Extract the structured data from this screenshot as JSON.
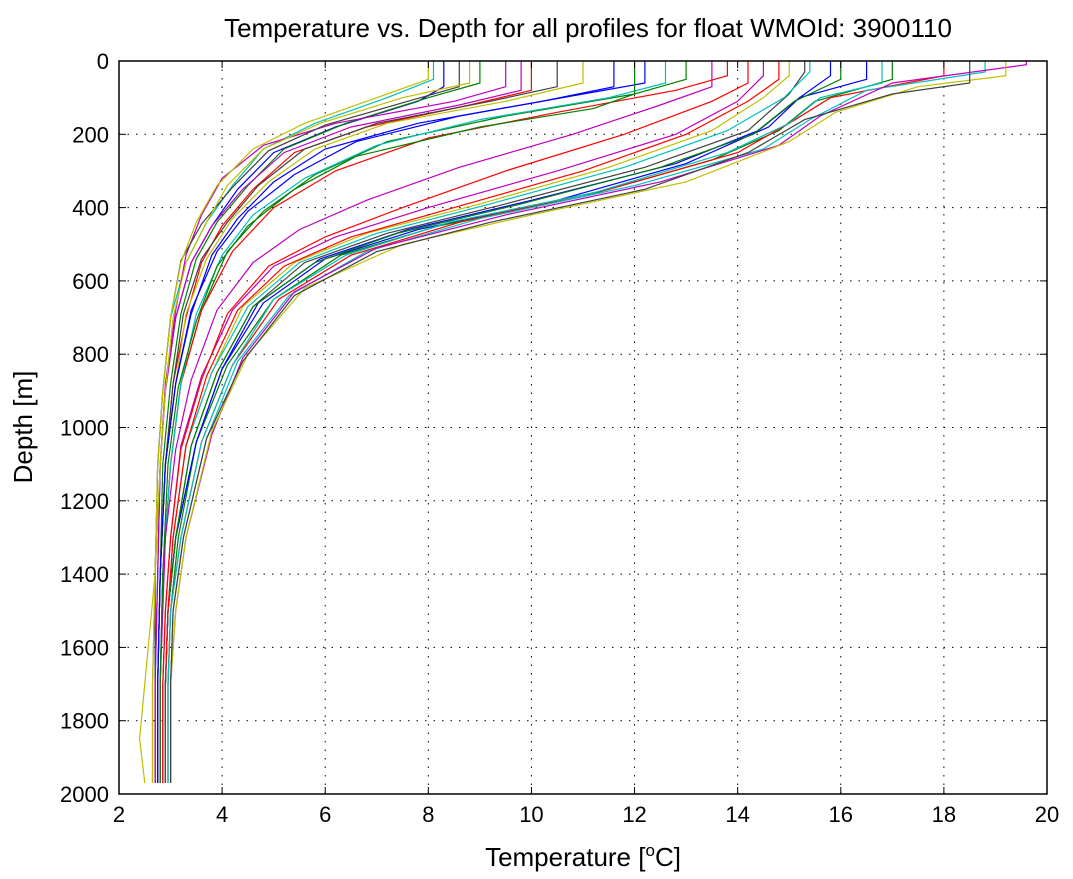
{
  "chart_data": {
    "type": "line",
    "title": "Temperature vs. Depth for all profiles for float WMOId: 3900110",
    "xlabel": "Temperature [",
    "xlabel_sup": "o",
    "xlabel_suffix": "C]",
    "ylabel": "Depth [m]",
    "xlim": [
      2,
      20
    ],
    "ylim": [
      0,
      2000
    ],
    "y_reversed": true,
    "grid": true,
    "x_ticks": [
      2,
      4,
      6,
      8,
      10,
      12,
      14,
      16,
      18,
      20
    ],
    "y_ticks": [
      0,
      200,
      400,
      600,
      800,
      1000,
      1200,
      1400,
      1600,
      1800,
      2000
    ],
    "x_tick_labels": [
      "2",
      "4",
      "6",
      "8",
      "10",
      "12",
      "14",
      "16",
      "18",
      "20"
    ],
    "y_tick_labels": [
      "0",
      "200",
      "400",
      "600",
      "800",
      "1000",
      "1200",
      "1400",
      "1600",
      "1800",
      "2000"
    ],
    "colors": [
      "#0000ff",
      "#008000",
      "#ff0000",
      "#00bfbf",
      "#bf00bf",
      "#bfbf00",
      "#404040"
    ],
    "series": [
      {
        "x": [
          8.3,
          8.3,
          7.8,
          6.2,
          5.0,
          4.3,
          3.8,
          3.4,
          3.1,
          2.9,
          2.8,
          2.75,
          2.7,
          2.7
        ],
        "y": [
          0,
          70,
          110,
          180,
          250,
          350,
          450,
          550,
          700,
          900,
          1100,
          1400,
          1700,
          1970
        ]
      },
      {
        "x": [
          9.0,
          9.0,
          8.0,
          6.4,
          5.2,
          4.5,
          3.9,
          3.5,
          3.2,
          3.0,
          2.85,
          2.8,
          2.75,
          2.75
        ],
        "y": [
          0,
          60,
          100,
          170,
          240,
          340,
          440,
          540,
          690,
          880,
          1100,
          1400,
          1700,
          1970
        ]
      },
      {
        "x": [
          10.0,
          10.0,
          8.8,
          6.8,
          5.4,
          4.6,
          4.0,
          3.6,
          3.3,
          3.05,
          2.9,
          2.8,
          2.75,
          2.75
        ],
        "y": [
          0,
          80,
          120,
          180,
          250,
          350,
          450,
          550,
          700,
          880,
          1100,
          1400,
          1700,
          1970
        ]
      },
      {
        "x": [
          8.1,
          8.1,
          7.2,
          5.8,
          4.8,
          4.2,
          3.7,
          3.3,
          3.0,
          2.85,
          2.75,
          2.7,
          2.65,
          2.65
        ],
        "y": [
          0,
          50,
          100,
          170,
          240,
          340,
          440,
          550,
          700,
          900,
          1100,
          1400,
          1700,
          1970
        ]
      },
      {
        "x": [
          9.5,
          9.5,
          8.5,
          6.2,
          4.8,
          4.0,
          3.6,
          3.3,
          3.1,
          2.9,
          2.8,
          2.7,
          2.7,
          2.7
        ],
        "y": [
          0,
          70,
          110,
          170,
          230,
          320,
          420,
          530,
          680,
          880,
          1100,
          1400,
          1700,
          1970
        ]
      },
      {
        "x": [
          11.0,
          11.0,
          9.5,
          7.2,
          5.8,
          4.9,
          4.2,
          3.7,
          3.3,
          3.1,
          2.9,
          2.8,
          2.75,
          2.75
        ],
        "y": [
          0,
          60,
          110,
          170,
          240,
          330,
          430,
          540,
          690,
          880,
          1100,
          1400,
          1700,
          1970
        ]
      },
      {
        "x": [
          8.6,
          8.6,
          7.6,
          6.0,
          4.9,
          4.2,
          3.6,
          3.2,
          3.0,
          2.85,
          2.75,
          2.7,
          2.7,
          2.7
        ],
        "y": [
          0,
          70,
          110,
          175,
          245,
          345,
          445,
          545,
          700,
          900,
          1100,
          1400,
          1700,
          1970
        ]
      },
      {
        "x": [
          12.2,
          12.2,
          11.0,
          8.6,
          6.6,
          5.4,
          4.5,
          3.9,
          3.4,
          3.1,
          2.9,
          2.8,
          2.75,
          2.75
        ],
        "y": [
          0,
          60,
          90,
          150,
          220,
          310,
          410,
          520,
          680,
          880,
          1100,
          1400,
          1700,
          1970
        ]
      },
      {
        "x": [
          13.0,
          13.0,
          12.0,
          9.5,
          7.2,
          5.8,
          4.8,
          4.1,
          3.6,
          3.2,
          3.0,
          2.85,
          2.8,
          2.8
        ],
        "y": [
          0,
          50,
          90,
          150,
          220,
          310,
          410,
          520,
          680,
          880,
          1100,
          1400,
          1700,
          1970
        ]
      },
      {
        "x": [
          13.8,
          13.8,
          12.8,
          10.5,
          8.0,
          6.2,
          5.0,
          4.2,
          3.6,
          3.2,
          3.0,
          2.85,
          2.8,
          2.8
        ],
        "y": [
          0,
          40,
          80,
          140,
          210,
          300,
          400,
          520,
          680,
          880,
          1100,
          1400,
          1700,
          1970
        ]
      },
      {
        "x": [
          12.6,
          12.6,
          11.5,
          9.0,
          7.0,
          5.6,
          4.6,
          4.0,
          3.5,
          3.2,
          3.0,
          2.85,
          2.8,
          2.8
        ],
        "y": [
          0,
          60,
          100,
          160,
          230,
          320,
          420,
          530,
          690,
          880,
          1100,
          1400,
          1700,
          1970
        ]
      },
      {
        "x": [
          14.5,
          14.5,
          14.0,
          12.8,
          10.5,
          8.0,
          6.2,
          5.0,
          4.2,
          3.6,
          3.2,
          3.0,
          2.9,
          2.85,
          2.85
        ],
        "y": [
          0,
          40,
          110,
          200,
          300,
          400,
          480,
          560,
          680,
          860,
          1050,
          1300,
          1500,
          1700,
          1970
        ]
      },
      {
        "x": [
          15.0,
          15.0,
          14.5,
          13.5,
          11.5,
          9.0,
          6.8,
          5.4,
          4.4,
          3.8,
          3.3,
          3.05,
          2.95,
          2.9,
          2.9
        ],
        "y": [
          0,
          40,
          100,
          190,
          290,
          390,
          470,
          550,
          670,
          850,
          1050,
          1300,
          1500,
          1700,
          1970
        ]
      },
      {
        "x": [
          15.3,
          15.3,
          15.0,
          14.2,
          12.2,
          9.5,
          7.2,
          5.6,
          4.6,
          3.9,
          3.4,
          3.1,
          2.95,
          2.9,
          2.9
        ],
        "y": [
          0,
          30,
          90,
          190,
          290,
          390,
          470,
          550,
          670,
          850,
          1050,
          1300,
          1500,
          1700,
          1970
        ]
      },
      {
        "x": [
          16.5,
          16.5,
          15.2,
          14.6,
          13.0,
          10.5,
          7.8,
          6.0,
          4.8,
          4.0,
          3.5,
          3.1,
          2.95,
          2.9,
          2.9
        ],
        "y": [
          0,
          50,
          100,
          180,
          280,
          380,
          460,
          540,
          660,
          840,
          1040,
          1300,
          1500,
          1700,
          1970
        ]
      },
      {
        "x": [
          17.0,
          17.0,
          15.5,
          14.8,
          13.5,
          11.0,
          8.2,
          6.3,
          5.0,
          4.1,
          3.5,
          3.15,
          3.0,
          2.95,
          2.95
        ],
        "y": [
          0,
          50,
          110,
          190,
          270,
          370,
          450,
          530,
          650,
          830,
          1040,
          1300,
          1500,
          1700,
          1970
        ]
      },
      {
        "x": [
          18.0,
          18.0,
          15.8,
          15.0,
          14.0,
          11.5,
          8.6,
          6.5,
          5.1,
          4.2,
          3.6,
          3.2,
          3.0,
          2.95,
          2.95
        ],
        "y": [
          0,
          40,
          100,
          170,
          250,
          350,
          440,
          530,
          650,
          830,
          1040,
          1300,
          1500,
          1700,
          1970
        ]
      },
      {
        "x": [
          18.8,
          18.8,
          16.5,
          15.4,
          14.5,
          12.0,
          9.0,
          6.8,
          5.3,
          4.3,
          3.7,
          3.25,
          3.05,
          3.0,
          3.0
        ],
        "y": [
          0,
          30,
          80,
          160,
          240,
          340,
          430,
          520,
          640,
          820,
          1030,
          1300,
          1500,
          1700,
          1970
        ]
      },
      {
        "x": [
          19.6,
          19.6,
          17.0,
          15.6,
          14.8,
          12.5,
          9.5,
          7.0,
          5.4,
          4.4,
          3.8,
          3.3,
          3.1,
          3.0,
          3.0
        ],
        "y": [
          0,
          10,
          60,
          150,
          230,
          330,
          420,
          510,
          630,
          810,
          1020,
          1300,
          1500,
          1700,
          1970
        ]
      },
      {
        "x": [
          19.2,
          19.2,
          17.5,
          15.9,
          15.0,
          13.0,
          10.0,
          7.5,
          5.6,
          4.5,
          3.8,
          3.3,
          3.1,
          3.0,
          3.0
        ],
        "y": [
          0,
          40,
          70,
          140,
          220,
          330,
          420,
          500,
          620,
          800,
          1010,
          1300,
          1500,
          1700,
          1970
        ]
      },
      {
        "x": [
          18.5,
          18.5,
          17.0,
          15.3,
          14.2,
          12.2,
          9.2,
          7.0,
          5.4,
          4.4,
          3.7,
          3.25,
          3.05,
          3.0,
          3.0
        ],
        "y": [
          0,
          60,
          90,
          160,
          250,
          350,
          440,
          520,
          640,
          820,
          1030,
          1300,
          1500,
          1700,
          1970
        ]
      },
      {
        "x": [
          15.8,
          15.8,
          15.2,
          14.4,
          12.8,
          10.0,
          7.6,
          5.9,
          4.7,
          4.0,
          3.5,
          3.1,
          2.95,
          2.9,
          2.9
        ],
        "y": [
          0,
          40,
          100,
          190,
          280,
          380,
          460,
          540,
          660,
          840,
          1040,
          1300,
          1500,
          1700,
          1970
        ]
      },
      {
        "x": [
          16.0,
          16.0,
          15.1,
          14.3,
          12.5,
          9.8,
          7.4,
          5.8,
          4.6,
          3.9,
          3.4,
          3.1,
          2.95,
          2.9,
          2.9
        ],
        "y": [
          0,
          50,
          110,
          200,
          290,
          390,
          470,
          550,
          670,
          850,
          1050,
          1300,
          1500,
          1700,
          1970
        ]
      },
      {
        "x": [
          14.2,
          14.2,
          13.5,
          11.8,
          9.5,
          7.5,
          6.0,
          4.9,
          4.1,
          3.6,
          3.2,
          3.0,
          2.9,
          2.85,
          2.85
        ],
        "y": [
          0,
          60,
          110,
          200,
          300,
          400,
          480,
          560,
          690,
          870,
          1060,
          1300,
          1500,
          1700,
          1970
        ]
      },
      {
        "x": [
          15.4,
          15.4,
          14.9,
          13.8,
          11.8,
          9.2,
          7.0,
          5.5,
          4.5,
          3.8,
          3.3,
          3.05,
          2.95,
          2.9,
          2.9
        ],
        "y": [
          0,
          30,
          100,
          190,
          290,
          390,
          470,
          550,
          670,
          850,
          1050,
          1300,
          1500,
          1700,
          1970
        ]
      },
      {
        "x": [
          13.5,
          13.5,
          12.5,
          10.8,
          8.6,
          6.8,
          5.5,
          4.6,
          3.9,
          3.4,
          3.1,
          2.9,
          2.85,
          2.8,
          2.8
        ],
        "y": [
          0,
          70,
          120,
          200,
          290,
          380,
          460,
          550,
          680,
          870,
          1060,
          1300,
          1500,
          1700,
          1970
        ]
      },
      {
        "x": [
          8.0,
          8.0,
          7.0,
          5.6,
          4.6,
          3.9,
          3.5,
          3.2,
          3.0,
          2.85,
          2.75,
          2.7,
          2.65,
          2.65
        ],
        "y": [
          0,
          50,
          100,
          170,
          240,
          340,
          440,
          550,
          700,
          900,
          1100,
          1400,
          1700,
          1970
        ]
      },
      {
        "x": [
          10.5,
          10.5,
          9.2,
          7.0,
          5.6,
          4.7,
          4.1,
          3.6,
          3.25,
          3.05,
          2.9,
          2.8,
          2.75,
          2.75
        ],
        "y": [
          0,
          70,
          110,
          170,
          240,
          340,
          440,
          540,
          690,
          880,
          1100,
          1400,
          1700,
          1970
        ]
      },
      {
        "x": [
          11.6,
          11.6,
          10.2,
          7.8,
          6.0,
          5.0,
          4.3,
          3.8,
          3.4,
          3.1,
          2.9,
          2.8,
          2.75,
          2.75
        ],
        "y": [
          0,
          70,
          110,
          170,
          240,
          330,
          430,
          530,
          690,
          880,
          1100,
          1400,
          1700,
          1970
        ]
      },
      {
        "x": [
          12.0,
          12.0,
          11.2,
          9.0,
          6.6,
          5.4,
          4.5,
          3.9,
          3.5,
          3.15,
          2.95,
          2.85,
          2.8,
          2.8
        ],
        "y": [
          0,
          90,
          130,
          180,
          260,
          350,
          450,
          560,
          710,
          890,
          1100,
          1400,
          1700,
          1970
        ]
      },
      {
        "x": [
          14.8,
          14.8,
          14.2,
          13.0,
          11.0,
          8.5,
          6.5,
          5.2,
          4.3,
          3.7,
          3.3,
          3.05,
          2.95,
          2.9,
          2.9
        ],
        "y": [
          0,
          50,
          110,
          200,
          300,
          400,
          480,
          560,
          680,
          860,
          1050,
          1300,
          1500,
          1700,
          1970
        ]
      },
      {
        "x": [
          16.8,
          16.8,
          15.6,
          15.0,
          13.8,
          11.2,
          8.4,
          6.4,
          5.0,
          4.2,
          3.6,
          3.2,
          3.0,
          2.95,
          2.95
        ],
        "y": [
          0,
          60,
          100,
          170,
          250,
          360,
          440,
          530,
          650,
          830,
          1040,
          1300,
          1500,
          1700,
          1970
        ]
      },
      {
        "x": [
          9.8,
          9.8,
          8.6,
          6.5,
          5.2,
          4.4,
          3.8,
          3.4,
          3.1,
          2.9,
          2.8,
          2.75,
          2.7,
          2.7
        ],
        "y": [
          0,
          80,
          120,
          180,
          250,
          350,
          450,
          550,
          700,
          900,
          1100,
          1400,
          1700,
          1970
        ]
      },
      {
        "x": [
          8.8,
          8.8,
          7.5,
          5.9,
          4.8,
          4.1,
          3.7,
          3.3,
          3.05,
          2.9,
          2.8,
          2.7,
          2.4,
          2.5
        ],
        "y": [
          0,
          60,
          100,
          170,
          240,
          340,
          440,
          550,
          700,
          900,
          1100,
          1400,
          1850,
          1970
        ]
      }
    ]
  }
}
